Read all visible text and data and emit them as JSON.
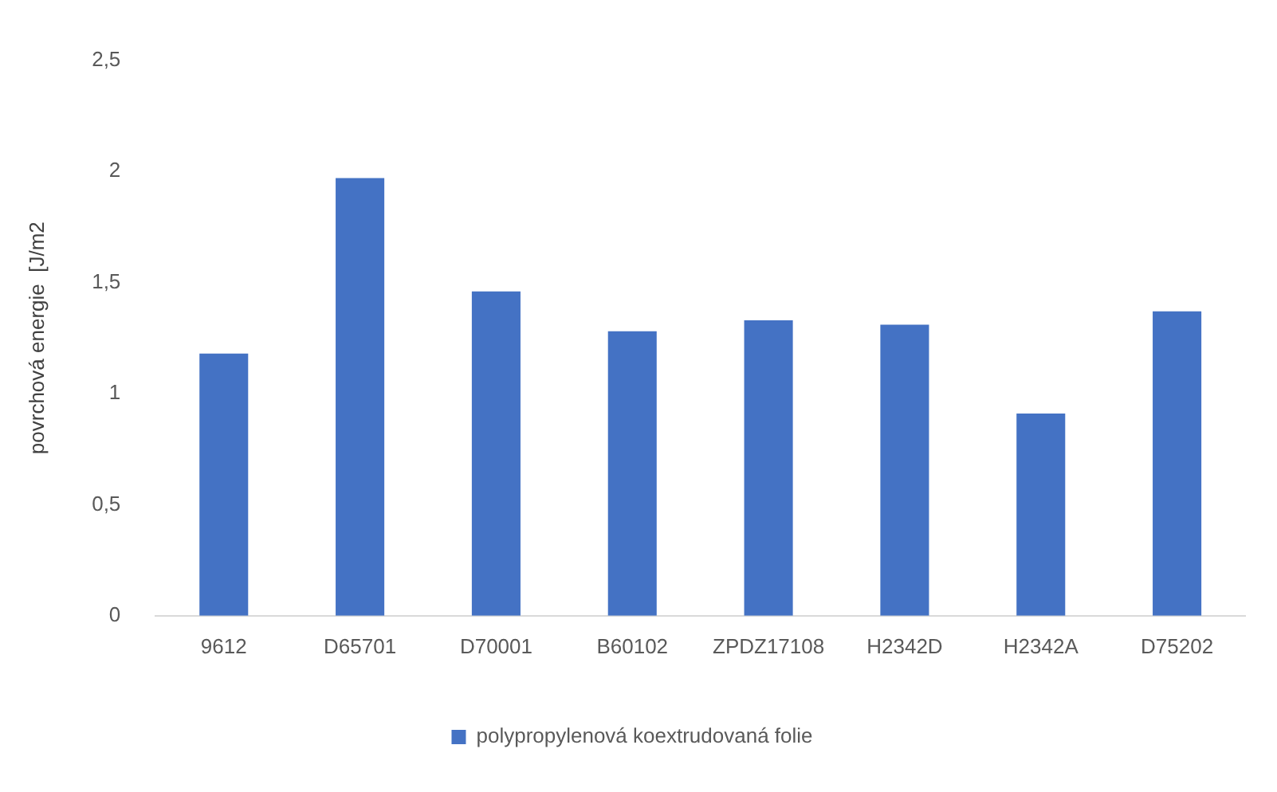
{
  "chart_data": {
    "type": "bar",
    "ylabel": "povrchová energie  [J/m2",
    "categories": [
      "9612",
      "D65701",
      "D70001",
      "B60102",
      "ZPDZ17108",
      "H2342D",
      "H2342A",
      "D75202"
    ],
    "series": [
      {
        "name": "polypropylenová koextrudovaná folie",
        "color": "#4472c4",
        "values": [
          1.18,
          1.97,
          1.46,
          1.28,
          1.33,
          1.31,
          0.91,
          1.37
        ]
      }
    ],
    "ylim": [
      0,
      2.5
    ],
    "yticks": [
      0,
      {
        "value": 0.5,
        "label": "0,5"
      },
      1,
      {
        "value": 1.5,
        "label": "1,5"
      },
      2,
      {
        "value": 2.5,
        "label": "2,5"
      }
    ],
    "grid": false,
    "legend": "bottom"
  }
}
